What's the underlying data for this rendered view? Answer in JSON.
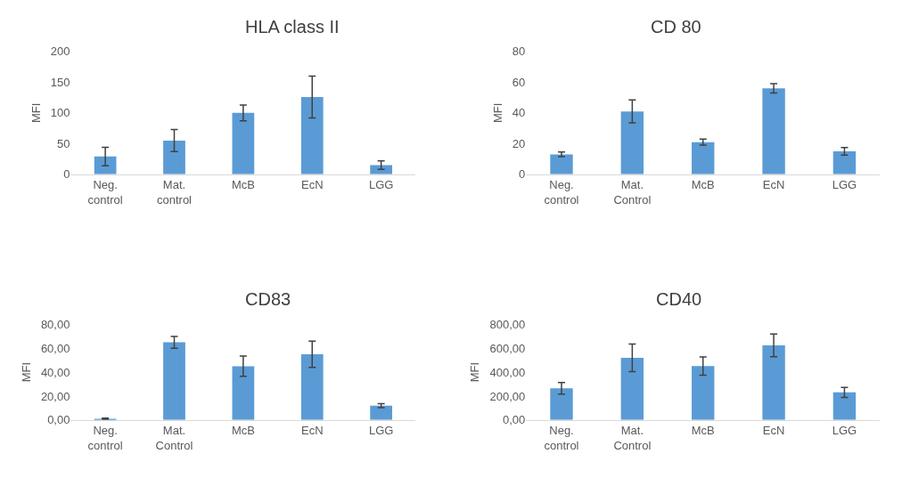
{
  "chart_data": [
    {
      "type": "bar",
      "title": "HLA class II",
      "ylabel": "MFI",
      "categories": [
        "Neg. control",
        "Mat. control",
        "McB",
        "EcN",
        "LGG"
      ],
      "color": "#5b9bd5",
      "values": [
        29,
        55,
        100,
        126,
        15
      ],
      "errors": [
        15,
        18,
        13,
        34,
        7
      ],
      "ylim": [
        0,
        200
      ],
      "yticks": [
        0,
        50,
        100,
        150,
        200
      ],
      "grid": false
    },
    {
      "type": "bar",
      "title": "CD 80",
      "ylabel": "MFI",
      "categories": [
        "Neg. control",
        "Mat. Control",
        "McB",
        "EcN",
        "LGG"
      ],
      "color": "#5b9bd5",
      "values": [
        13,
        41,
        21,
        56,
        15
      ],
      "errors": [
        1.5,
        7.5,
        2,
        3,
        2.5
      ],
      "ylim": [
        0,
        80
      ],
      "yticks": [
        0,
        20,
        40,
        60,
        80
      ],
      "grid": false
    },
    {
      "type": "bar",
      "title": "CD83",
      "ylabel": "MFI",
      "categories": [
        "Neg. control",
        "Mat. Control",
        "McB",
        "EcN",
        "LGG"
      ],
      "color": "#5b9bd5",
      "values": [
        1,
        65,
        45,
        55,
        12
      ],
      "errors": [
        0.5,
        5,
        8.5,
        11,
        1.7
      ],
      "ylim": [
        0,
        80
      ],
      "yticks": [
        {
          "value": 0,
          "label": "0,00"
        },
        {
          "value": 20,
          "label": "20,00"
        },
        {
          "value": 40,
          "label": "40,00"
        },
        {
          "value": 60,
          "label": "60,00"
        },
        {
          "value": 80,
          "label": "80,00"
        }
      ],
      "grid": false
    },
    {
      "type": "bar",
      "title": "CD40",
      "ylabel": "MFI",
      "categories": [
        "Neg. control",
        "Mat. Control",
        "McB",
        "EcN",
        "LGG"
      ],
      "color": "#5b9bd5",
      "values": [
        265,
        520,
        451,
        625,
        231
      ],
      "errors": [
        48,
        116,
        76,
        95,
        42
      ],
      "ylim": [
        0,
        800
      ],
      "yticks": [
        {
          "value": 0,
          "label": "0,00"
        },
        {
          "value": 200,
          "label": "200,00"
        },
        {
          "value": 400,
          "label": "400,00"
        },
        {
          "value": 600,
          "label": "600,00"
        },
        {
          "value": 800,
          "label": "800,00"
        }
      ],
      "grid": false
    }
  ]
}
